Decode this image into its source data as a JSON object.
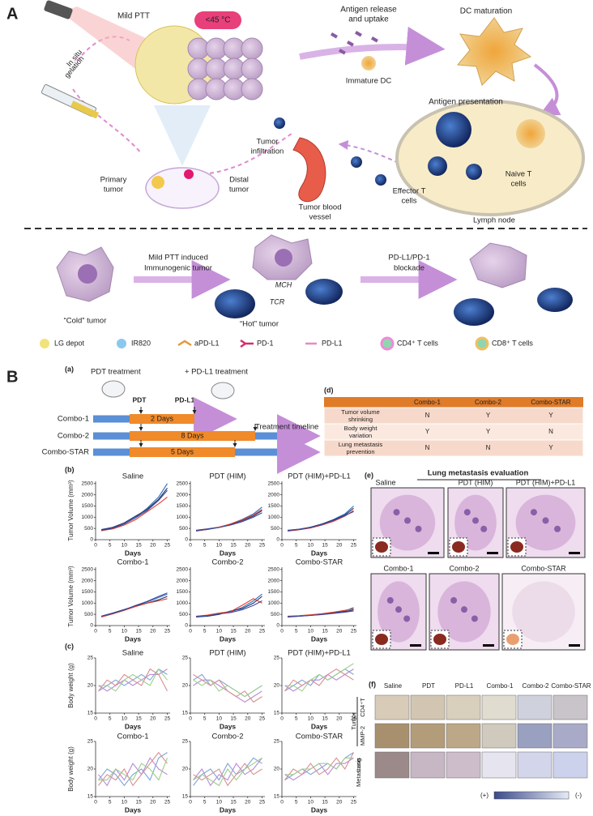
{
  "panel_a": {
    "label": "A",
    "mild_ptt": "Mild PTT",
    "temperature": "<45 °C",
    "in_situ_gelation": [
      "In situ",
      "gelation"
    ],
    "antigen_release": [
      "Antigen release",
      "and uptake"
    ],
    "dc_maturation": "DC maturation",
    "immature_dc": "Immature DC",
    "antigen_presentation": "Antigen presentation",
    "tumor_infiltration": [
      "Tumor",
      "infiltration"
    ],
    "primary_tumor": [
      "Primary",
      "tumor"
    ],
    "distal_tumor": [
      "Distal",
      "tumor"
    ],
    "tumor_blood_vessel": [
      "Tumor blood",
      "vessel"
    ],
    "effector_t_cells": [
      "Effector T",
      "cells"
    ],
    "naive_t_cells": [
      "Naive T",
      "cells"
    ],
    "lymph_node": "Lymph node",
    "cold_tumor": "“Cold” tumor",
    "mild_ptt_induced": [
      "Mild PTT induced",
      "Immunogenic tumor"
    ],
    "mch": "MCH",
    "tcr": "TCR",
    "hot_tumor": "“Hot” tumor",
    "blockade": [
      "PD-L1/PD-1",
      "blockade"
    ],
    "legend": [
      "LG depot",
      "IR820",
      "aPD-L1",
      "PD-1",
      "PD-L1",
      "CD4⁺ T cells",
      "CD8⁺ T cells"
    ]
  },
  "panel_b": {
    "label": "B",
    "a": {
      "label": "(a)",
      "pdt_treatment": "PDT treatment",
      "pdl1_treatment": "+ PD-L1 treatment",
      "markers": [
        "PDT",
        "PD-L1"
      ],
      "rows": [
        {
          "name": "Combo-1",
          "duration": "2 Days"
        },
        {
          "name": "Combo-2",
          "duration": "8 Days"
        },
        {
          "name": "Combo-STAR",
          "duration": "5 Days"
        }
      ],
      "timeline": "Treatment timeline"
    },
    "d": {
      "label": "(d)",
      "header": [
        "Combo-1",
        "Combo-2",
        "Combo-STAR"
      ],
      "rows": [
        {
          "label": [
            "Tumor volume",
            "shrinking"
          ],
          "cells": [
            "N",
            "Y",
            "Y"
          ]
        },
        {
          "label": [
            "Body weight",
            "variation"
          ],
          "cells": [
            "Y",
            "Y",
            "N"
          ]
        },
        {
          "label": [
            "Lung metastasis",
            "prevention"
          ],
          "cells": [
            "N",
            "N",
            "Y"
          ]
        }
      ]
    },
    "b": {
      "label": "(b)",
      "ylabel": "Tumor Volume (mm³)",
      "xlabel": "Days",
      "x": [
        2,
        6,
        10,
        14,
        18,
        22,
        25
      ],
      "xlim": [
        0,
        26
      ],
      "xticks": [
        0,
        5,
        10,
        15,
        20,
        25
      ],
      "ylim": [
        0,
        2600
      ],
      "yticks": [
        0,
        500,
        1000,
        1500,
        2000,
        2500
      ],
      "charts": [
        {
          "type": "line",
          "title": "Saline",
          "series": [
            {
              "color": "#2b6cb8",
              "values": [
                400,
                500,
                700,
                1000,
                1400,
                1900,
                2500
              ]
            },
            {
              "color": "#1b2f6e",
              "values": [
                450,
                550,
                750,
                1050,
                1350,
                1800,
                2300
              ]
            },
            {
              "color": "#e0402a",
              "values": [
                400,
                480,
                650,
                900,
                1250,
                1600,
                1900
              ]
            },
            {
              "color": "#3b4a9c",
              "values": [
                420,
                520,
                700,
                980,
                1300,
                1750,
                2200
              ]
            }
          ]
        },
        {
          "type": "line",
          "title": "PDT (HIM)",
          "series": [
            {
              "color": "#2b6cb8",
              "values": [
                400,
                450,
                550,
                700,
                900,
                1150,
                1450
              ]
            },
            {
              "color": "#1b2f6e",
              "values": [
                420,
                480,
                560,
                680,
                850,
                1050,
                1300
              ]
            },
            {
              "color": "#e0402a",
              "values": [
                380,
                460,
                560,
                700,
                880,
                1100,
                1350
              ]
            },
            {
              "color": "#3b4a9c",
              "values": [
                400,
                470,
                540,
                650,
                800,
                1000,
                1200
              ]
            }
          ]
        },
        {
          "type": "line",
          "title": "PDT (HIM)+PD-L1",
          "series": [
            {
              "color": "#2b6cb8",
              "values": [
                400,
                450,
                550,
                700,
                900,
                1150,
                1500
              ]
            },
            {
              "color": "#1b2f6e",
              "values": [
                420,
                470,
                560,
                700,
                880,
                1100,
                1400
              ]
            },
            {
              "color": "#e0402a",
              "values": [
                380,
                440,
                520,
                650,
                820,
                1050,
                1300
              ]
            },
            {
              "color": "#3b4a9c",
              "values": [
                400,
                460,
                540,
                680,
                860,
                1080,
                1250
              ]
            }
          ]
        },
        {
          "type": "line",
          "title": "Combo-1",
          "series": [
            {
              "color": "#2b6cb8",
              "values": [
                400,
                550,
                700,
                900,
                1050,
                1250,
                1400
              ]
            },
            {
              "color": "#1b2f6e",
              "values": [
                420,
                560,
                720,
                880,
                1000,
                1150,
                1300
              ]
            },
            {
              "color": "#e0402a",
              "values": [
                380,
                520,
                680,
                850,
                1000,
                1100,
                1200
              ]
            },
            {
              "color": "#3b4a9c",
              "values": [
                410,
                540,
                700,
                900,
                1080,
                1300,
                1450
              ]
            }
          ]
        },
        {
          "type": "line",
          "title": "Combo-2",
          "series": [
            {
              "color": "#2b6cb8",
              "values": [
                400,
                450,
                520,
                600,
                800,
                1100,
                1400
              ]
            },
            {
              "color": "#1b2f6e",
              "values": [
                380,
                420,
                500,
                650,
                750,
                1000,
                1300
              ]
            },
            {
              "color": "#e0402a",
              "values": [
                420,
                470,
                560,
                620,
                900,
                1200,
                1000
              ]
            },
            {
              "color": "#3b4a9c",
              "values": [
                400,
                440,
                520,
                580,
                700,
                900,
                1100
              ]
            }
          ]
        },
        {
          "type": "line",
          "title": "Combo-STAR",
          "series": [
            {
              "color": "#2b6cb8",
              "values": [
                400,
                430,
                470,
                520,
                580,
                650,
                800
              ]
            },
            {
              "color": "#1b2f6e",
              "values": [
                380,
                420,
                460,
                500,
                560,
                620,
                700
              ]
            },
            {
              "color": "#e0402a",
              "values": [
                420,
                440,
                480,
                530,
                600,
                680,
                750
              ]
            },
            {
              "color": "#3b4a9c",
              "values": [
                400,
                420,
                450,
                490,
                540,
                600,
                650
              ]
            }
          ]
        }
      ]
    },
    "c": {
      "label": "(c)",
      "ylabel": "Body weight (g)",
      "xlabel": "Days",
      "x": [
        1,
        4,
        7,
        10,
        13,
        16,
        19,
        22,
        25
      ],
      "xlim": [
        0,
        26
      ],
      "xticks": [
        0,
        5,
        10,
        15,
        20,
        25
      ],
      "ylim": [
        15,
        25
      ],
      "yticks": [
        15,
        20,
        25
      ],
      "charts": [
        {
          "type": "line",
          "title": "Saline",
          "series": [
            {
              "color": "#7fa6d6",
              "values": [
                19,
                20,
                21,
                20,
                21,
                22,
                21,
                23,
                22
              ]
            },
            {
              "color": "#b98ad6",
              "values": [
                20,
                19,
                20,
                21,
                20,
                21,
                22,
                22,
                23
              ]
            },
            {
              "color": "#d98f8f",
              "values": [
                19,
                21,
                20,
                22,
                21,
                20,
                23,
                22,
                19
              ]
            },
            {
              "color": "#9ccf8c",
              "values": [
                20,
                20,
                19,
                21,
                22,
                21,
                20,
                23,
                21
              ]
            }
          ]
        },
        {
          "type": "line",
          "title": "PDT (HIM)",
          "series": [
            {
              "color": "#7fa6d6",
              "values": [
                21,
                22,
                20,
                21,
                20,
                19,
                18,
                19,
                20
              ]
            },
            {
              "color": "#b98ad6",
              "values": [
                20,
                21,
                21,
                20,
                19,
                18,
                17,
                18,
                19
              ]
            },
            {
              "color": "#d98f8f",
              "values": [
                22,
                21,
                20,
                21,
                19,
                18,
                19,
                17,
                18
              ]
            },
            {
              "color": "#9ccf8c",
              "values": [
                21,
                20,
                21,
                19,
                20,
                19,
                18,
                19,
                20
              ]
            }
          ]
        },
        {
          "type": "line",
          "title": "PDT (HIM)+PD-L1",
          "series": [
            {
              "color": "#7fa6d6",
              "values": [
                19,
                20,
                21,
                20,
                22,
                21,
                22,
                23,
                22
              ]
            },
            {
              "color": "#b98ad6",
              "values": [
                20,
                19,
                20,
                21,
                21,
                22,
                21,
                22,
                23
              ]
            },
            {
              "color": "#d98f8f",
              "values": [
                19,
                21,
                20,
                21,
                20,
                22,
                23,
                22,
                21
              ]
            },
            {
              "color": "#9ccf8c",
              "values": [
                20,
                20,
                19,
                21,
                22,
                21,
                22,
                23,
                24
              ]
            }
          ]
        },
        {
          "type": "line",
          "title": "Combo-1",
          "series": [
            {
              "color": "#7fa6d6",
              "values": [
                18,
                20,
                19,
                17,
                19,
                20,
                18,
                22,
                23
              ]
            },
            {
              "color": "#b98ad6",
              "values": [
                19,
                17,
                20,
                18,
                21,
                19,
                22,
                20,
                19
              ]
            },
            {
              "color": "#d98f8f",
              "values": [
                17,
                19,
                18,
                20,
                17,
                19,
                21,
                23,
                21
              ]
            },
            {
              "color": "#9ccf8c",
              "values": [
                18,
                18,
                20,
                19,
                18,
                21,
                20,
                18,
                22
              ]
            }
          ]
        },
        {
          "type": "line",
          "title": "Combo-2",
          "series": [
            {
              "color": "#7fa6d6",
              "values": [
                17,
                19,
                20,
                18,
                21,
                19,
                20,
                22,
                21
              ]
            },
            {
              "color": "#b98ad6",
              "values": [
                18,
                20,
                17,
                19,
                18,
                21,
                19,
                20,
                22
              ]
            },
            {
              "color": "#d98f8f",
              "values": [
                19,
                18,
                19,
                20,
                17,
                19,
                21,
                19,
                20
              ]
            },
            {
              "color": "#9ccf8c",
              "values": [
                18,
                19,
                18,
                17,
                20,
                18,
                20,
                21,
                22
              ]
            }
          ]
        },
        {
          "type": "line",
          "title": "Combo-STAR",
          "series": [
            {
              "color": "#7fa6d6",
              "values": [
                18,
                19,
                20,
                19,
                20,
                21,
                20,
                22,
                23
              ]
            },
            {
              "color": "#b98ad6",
              "values": [
                19,
                18,
                19,
                20,
                21,
                19,
                21,
                21,
                22
              ]
            },
            {
              "color": "#d98f8f",
              "values": [
                18,
                20,
                19,
                21,
                19,
                20,
                22,
                20,
                23
              ]
            },
            {
              "color": "#9ccf8c",
              "values": [
                19,
                19,
                20,
                20,
                21,
                21,
                20,
                22,
                22
              ]
            }
          ]
        }
      ]
    },
    "e": {
      "label": "(e)",
      "title": "Lung metastasis evaluation",
      "panels": [
        "Saline",
        "PDT (HIM)",
        "PDT (HIM)+PD-L1",
        "Combo-1",
        "Combo-2",
        "Combo-STAR"
      ]
    },
    "f": {
      "label": "(f)",
      "columns": [
        "Saline",
        "PDT",
        "PD-L1",
        "Combo-1",
        "Combo-2",
        "Combo-STAR"
      ],
      "group": "Tumor",
      "rows": [
        [
          "CD4⁺T"
        ],
        [
          "MMP-2"
        ],
        [
          "Lung",
          "Metastasis"
        ]
      ],
      "scale": [
        "(+)",
        "(-)"
      ]
    }
  }
}
